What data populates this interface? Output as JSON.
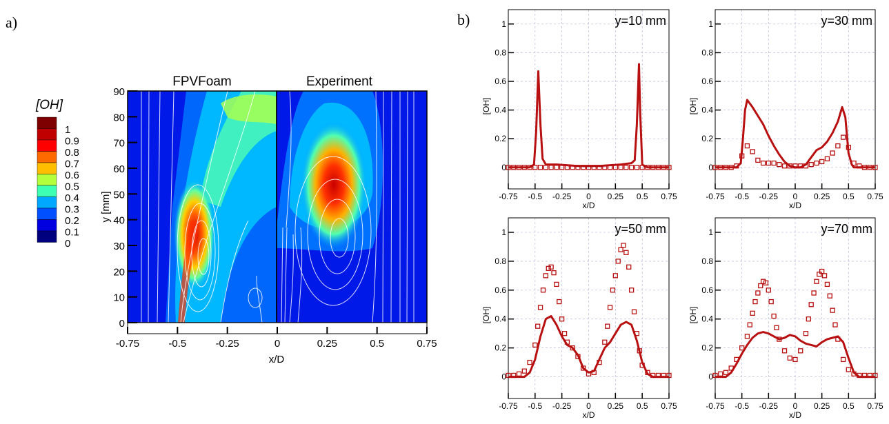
{
  "panel_a": {
    "label": "a)",
    "legend_title": "[OH]",
    "legend_levels": [
      "1",
      "0.9",
      "0.8",
      "0.7",
      "0.6",
      "0.5",
      "0.4",
      "0.3",
      "0.2",
      "0.1",
      "0"
    ],
    "legend_colors": [
      "#7f0000",
      "#c00000",
      "#ff0000",
      "#ff6a00",
      "#ffbf00",
      "#b4ff3c",
      "#3cffb4",
      "#00a8ff",
      "#0050ff",
      "#0000e0",
      "#00007f"
    ],
    "left_title": "FPVFoam",
    "right_title": "Experiment",
    "xlabel": "x/D",
    "ylabel": "y [mm]"
  },
  "panel_b": {
    "label": "b)"
  },
  "chart_data": [
    {
      "type": "heatmap",
      "title": "",
      "subplots": [
        "FPVFoam",
        "Experiment"
      ],
      "xlabel": "x/D",
      "ylabel": "y [mm]",
      "xlim": [
        -0.75,
        0.75
      ],
      "ylim": [
        -5,
        90
      ],
      "xticks": [
        "-0.75",
        "-0.5",
        "-0.25",
        "0",
        "0.25",
        "0.5",
        "0.75"
      ],
      "yticks": [
        "0",
        "10",
        "20",
        "30",
        "40",
        "50",
        "60",
        "70",
        "80",
        "90"
      ],
      "colorbar_title": "[OH]",
      "colorbar_range": [
        0,
        1
      ]
    },
    {
      "type": "line",
      "annotation": "y=10 mm",
      "xlabel": "x/D",
      "ylabel": "[OH]",
      "xlim": [
        -0.75,
        0.75
      ],
      "ylim": [
        -0.15,
        1.1
      ],
      "xticks": [
        "-0.75",
        "-0.5",
        "-0.25",
        "0",
        "0.25",
        "0.5",
        "0.75"
      ],
      "yticks": [
        "0",
        "0.2",
        "0.4",
        "0.6",
        "0.8",
        "1"
      ],
      "line_x": [
        -0.75,
        -0.55,
        -0.51,
        -0.49,
        -0.47,
        -0.45,
        -0.43,
        -0.4,
        -0.3,
        -0.1,
        0.1,
        0.3,
        0.4,
        0.43,
        0.45,
        0.47,
        0.48,
        0.5,
        0.52,
        0.55,
        0.75
      ],
      "line_y": [
        0,
        0,
        0.02,
        0.25,
        0.67,
        0.3,
        0.06,
        0.02,
        0.02,
        0.01,
        0.01,
        0.02,
        0.03,
        0.05,
        0.3,
        0.72,
        0.4,
        0.02,
        0.01,
        0,
        0
      ],
      "marker_x": [
        -0.75,
        -0.7,
        -0.65,
        -0.6,
        -0.55,
        -0.5,
        -0.45,
        -0.4,
        -0.35,
        -0.3,
        -0.25,
        -0.2,
        -0.15,
        -0.1,
        -0.05,
        0,
        0.05,
        0.1,
        0.15,
        0.2,
        0.25,
        0.3,
        0.35,
        0.4,
        0.45,
        0.5,
        0.55,
        0.6,
        0.65,
        0.7,
        0.75
      ],
      "marker_y": [
        0,
        0,
        0,
        0,
        0,
        0,
        0,
        0,
        0,
        0,
        0,
        0,
        0,
        0,
        0,
        0,
        0,
        0,
        0,
        0,
        0,
        0,
        0,
        0,
        0,
        0,
        0,
        0,
        0,
        0,
        0
      ]
    },
    {
      "type": "line",
      "annotation": "y=30 mm",
      "xlabel": "x/D",
      "ylabel": "[OH]",
      "xlim": [
        -0.75,
        0.75
      ],
      "ylim": [
        -0.15,
        1.1
      ],
      "xticks": [
        "-0.75",
        "-0.5",
        "-0.25",
        "0",
        "0.25",
        "0.5",
        "0.75"
      ],
      "yticks": [
        "0",
        "0.2",
        "0.4",
        "0.6",
        "0.8",
        "1"
      ],
      "line_x": [
        -0.75,
        -0.55,
        -0.51,
        -0.49,
        -0.47,
        -0.45,
        -0.4,
        -0.35,
        -0.3,
        -0.25,
        -0.2,
        -0.15,
        -0.1,
        -0.05,
        0,
        0.05,
        0.1,
        0.15,
        0.2,
        0.25,
        0.3,
        0.35,
        0.4,
        0.44,
        0.47,
        0.5,
        0.53,
        0.55,
        0.75
      ],
      "line_y": [
        0,
        0,
        0.03,
        0.2,
        0.4,
        0.47,
        0.42,
        0.36,
        0.3,
        0.22,
        0.15,
        0.09,
        0.04,
        0.01,
        0,
        0,
        0.02,
        0.07,
        0.12,
        0.14,
        0.18,
        0.24,
        0.32,
        0.42,
        0.35,
        0.1,
        0.02,
        0,
        0
      ],
      "marker_x": [
        -0.75,
        -0.7,
        -0.65,
        -0.6,
        -0.55,
        -0.5,
        -0.45,
        -0.4,
        -0.35,
        -0.3,
        -0.25,
        -0.2,
        -0.15,
        -0.1,
        -0.05,
        0,
        0.05,
        0.1,
        0.15,
        0.2,
        0.25,
        0.3,
        0.35,
        0.4,
        0.45,
        0.5,
        0.55,
        0.6,
        0.65,
        0.7,
        0.75
      ],
      "marker_y": [
        0,
        0,
        0,
        0,
        0.01,
        0.08,
        0.15,
        0.11,
        0.05,
        0.03,
        0.03,
        0.03,
        0.02,
        0.01,
        0.01,
        0.01,
        0.01,
        0.01,
        0.02,
        0.03,
        0.04,
        0.06,
        0.1,
        0.15,
        0.21,
        0.14,
        0.03,
        0.01,
        0,
        0,
        0
      ]
    },
    {
      "type": "line",
      "annotation": "y=50 mm",
      "xlabel": "x/D",
      "ylabel": "[OH]",
      "xlim": [
        -0.75,
        0.75
      ],
      "ylim": [
        -0.15,
        1.1
      ],
      "xticks": [
        "-0.75",
        "-0.5",
        "-0.25",
        "0",
        "0.25",
        "0.5",
        "0.75"
      ],
      "yticks": [
        "0",
        "0.2",
        "0.4",
        "0.6",
        "0.8",
        "1"
      ],
      "line_x": [
        -0.75,
        -0.6,
        -0.55,
        -0.5,
        -0.45,
        -0.4,
        -0.35,
        -0.3,
        -0.25,
        -0.2,
        -0.15,
        -0.1,
        -0.05,
        0,
        0.05,
        0.1,
        0.15,
        0.2,
        0.25,
        0.3,
        0.35,
        0.4,
        0.45,
        0.5,
        0.55,
        0.6,
        0.75
      ],
      "line_y": [
        0,
        0,
        0.03,
        0.12,
        0.28,
        0.4,
        0.42,
        0.36,
        0.28,
        0.22,
        0.2,
        0.15,
        0.06,
        0.03,
        0.04,
        0.12,
        0.2,
        0.24,
        0.3,
        0.36,
        0.38,
        0.36,
        0.25,
        0.1,
        0.02,
        0,
        0
      ],
      "marker_x": [
        -0.75,
        -0.7,
        -0.65,
        -0.6,
        -0.55,
        -0.5,
        -0.475,
        -0.45,
        -0.425,
        -0.4,
        -0.375,
        -0.35,
        -0.325,
        -0.3,
        -0.275,
        -0.25,
        -0.225,
        -0.2,
        -0.15,
        -0.1,
        -0.05,
        0,
        0.05,
        0.1,
        0.15,
        0.175,
        0.2,
        0.225,
        0.25,
        0.275,
        0.3,
        0.325,
        0.35,
        0.375,
        0.4,
        0.425,
        0.45,
        0.475,
        0.5,
        0.55,
        0.6,
        0.65,
        0.7,
        0.75
      ],
      "marker_y": [
        0.01,
        0.01,
        0.02,
        0.04,
        0.1,
        0.22,
        0.35,
        0.48,
        0.6,
        0.7,
        0.75,
        0.76,
        0.72,
        0.64,
        0.52,
        0.4,
        0.3,
        0.24,
        0.2,
        0.14,
        0.06,
        0.02,
        0.03,
        0.1,
        0.24,
        0.35,
        0.48,
        0.6,
        0.7,
        0.8,
        0.88,
        0.91,
        0.86,
        0.76,
        0.6,
        0.45,
        0.3,
        0.18,
        0.08,
        0.03,
        0.01,
        0.01,
        0.01,
        0.01
      ]
    },
    {
      "type": "line",
      "annotation": "y=70 mm",
      "xlabel": "x/D",
      "ylabel": "[OH]",
      "xlim": [
        -0.75,
        0.75
      ],
      "ylim": [
        -0.15,
        1.1
      ],
      "xticks": [
        "-0.75",
        "-0.5",
        "-0.25",
        "0",
        "0.25",
        "0.5",
        "0.75"
      ],
      "yticks": [
        "0",
        "0.2",
        "0.4",
        "0.6",
        "0.8",
        "1"
      ],
      "line_x": [
        -0.75,
        -0.65,
        -0.6,
        -0.55,
        -0.5,
        -0.45,
        -0.4,
        -0.35,
        -0.3,
        -0.25,
        -0.2,
        -0.15,
        -0.1,
        -0.05,
        0,
        0.05,
        0.1,
        0.15,
        0.2,
        0.25,
        0.3,
        0.35,
        0.4,
        0.45,
        0.5,
        0.55,
        0.6,
        0.75
      ],
      "line_y": [
        0,
        0,
        0.03,
        0.09,
        0.16,
        0.22,
        0.27,
        0.3,
        0.31,
        0.3,
        0.28,
        0.26,
        0.27,
        0.29,
        0.28,
        0.25,
        0.23,
        0.22,
        0.21,
        0.24,
        0.26,
        0.27,
        0.28,
        0.24,
        0.13,
        0.03,
        0,
        0
      ],
      "marker_x": [
        -0.75,
        -0.7,
        -0.65,
        -0.6,
        -0.55,
        -0.5,
        -0.45,
        -0.425,
        -0.4,
        -0.375,
        -0.35,
        -0.325,
        -0.3,
        -0.275,
        -0.25,
        -0.225,
        -0.2,
        -0.175,
        -0.15,
        -0.1,
        -0.05,
        0,
        0.05,
        0.1,
        0.125,
        0.15,
        0.175,
        0.2,
        0.225,
        0.25,
        0.275,
        0.3,
        0.325,
        0.35,
        0.375,
        0.4,
        0.45,
        0.5,
        0.55,
        0.6,
        0.65,
        0.7,
        0.75
      ],
      "marker_y": [
        0.01,
        0.02,
        0.03,
        0.06,
        0.12,
        0.2,
        0.28,
        0.36,
        0.44,
        0.52,
        0.58,
        0.63,
        0.66,
        0.65,
        0.6,
        0.52,
        0.42,
        0.34,
        0.26,
        0.18,
        0.13,
        0.12,
        0.18,
        0.3,
        0.4,
        0.5,
        0.58,
        0.66,
        0.71,
        0.73,
        0.7,
        0.64,
        0.56,
        0.46,
        0.36,
        0.26,
        0.12,
        0.05,
        0.02,
        0.01,
        0.01,
        0.01,
        0.01
      ]
    }
  ]
}
